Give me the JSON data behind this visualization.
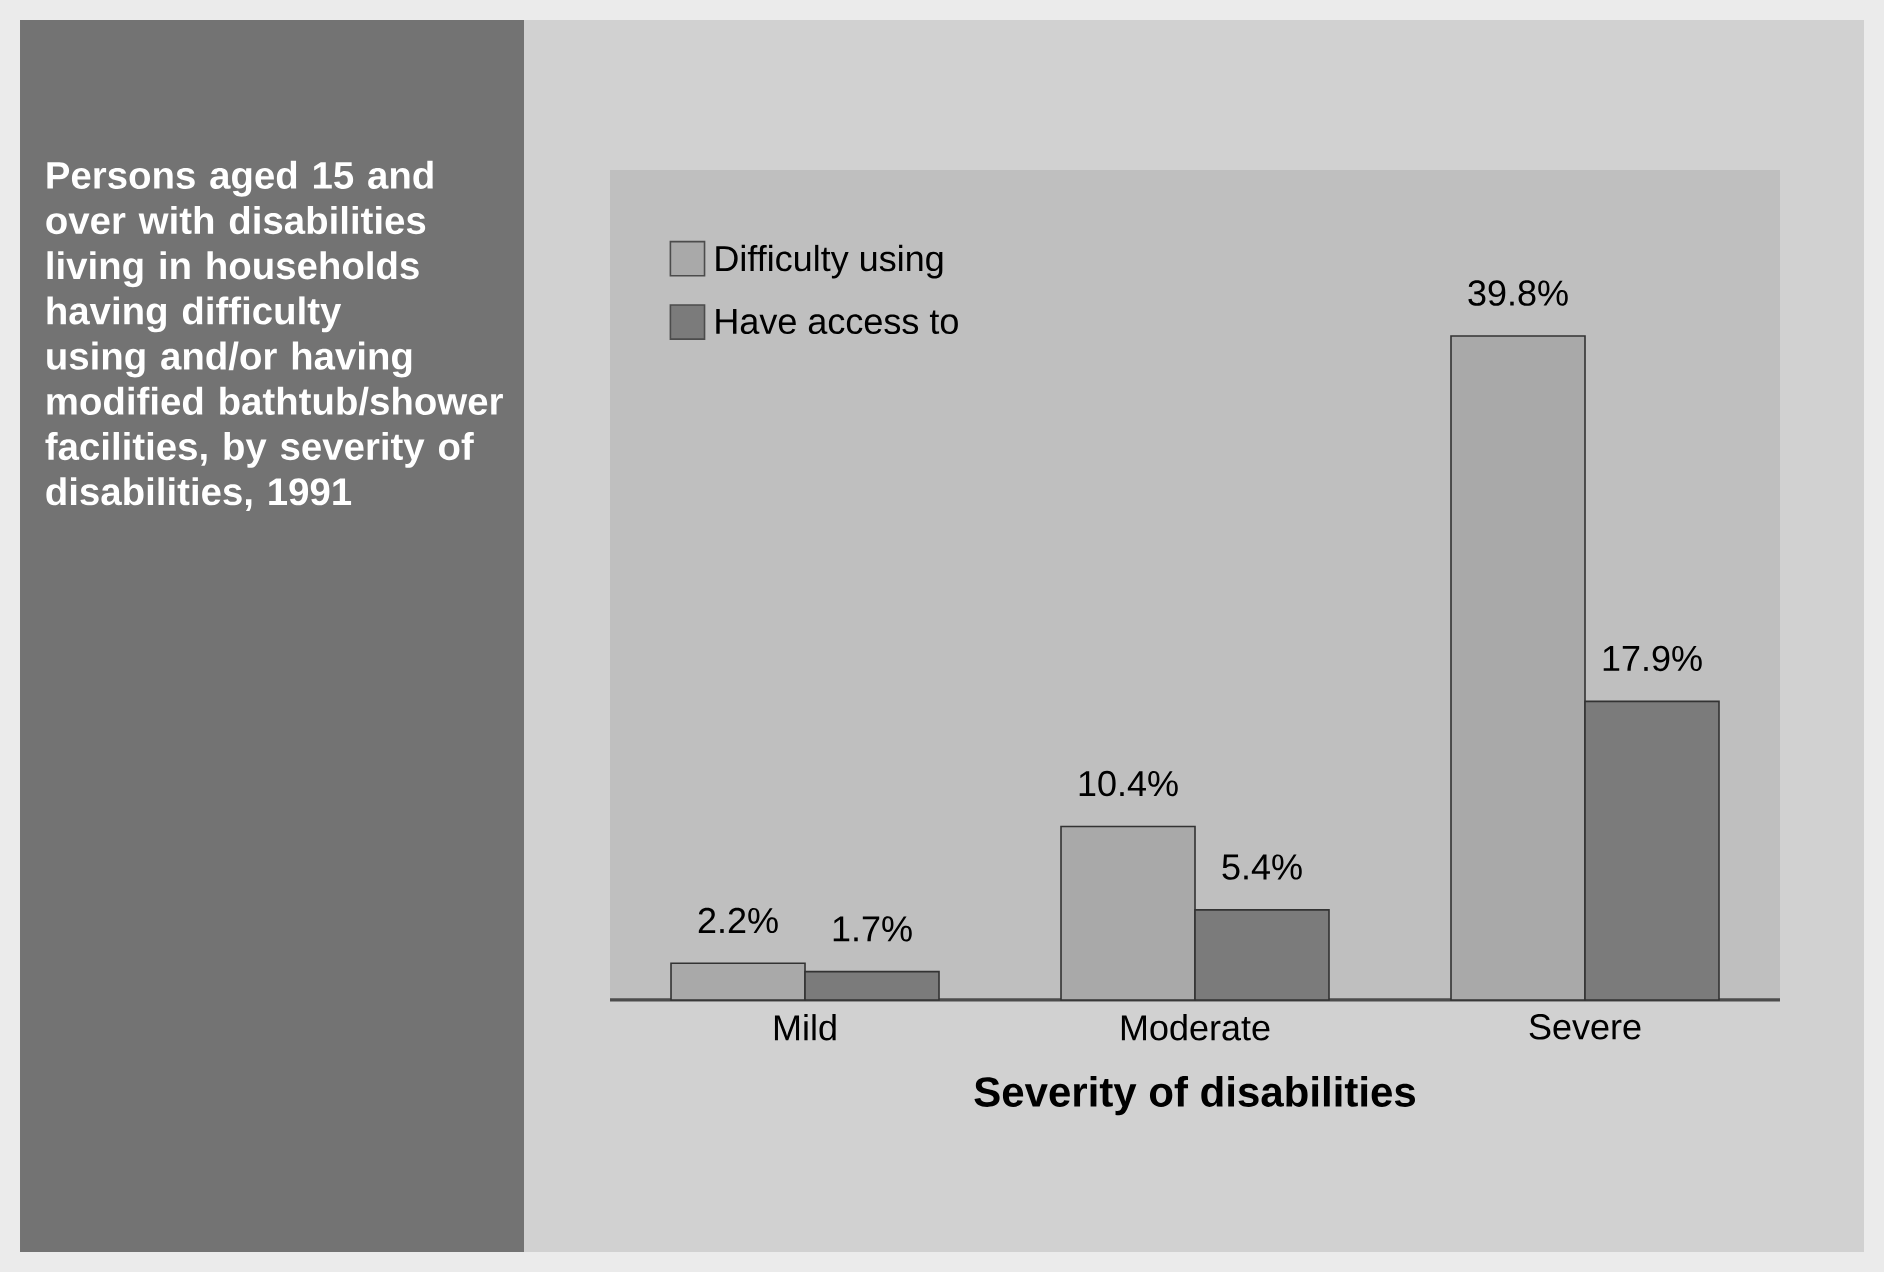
{
  "chart_data": {
    "type": "bar",
    "title": "Persons aged 15 and over with disabilities living in households having difficulty using and/or having modified bathtub/shower facilities, by severity of disabilities, 1991",
    "xlabel": "Severity of disabilities",
    "categories": [
      "Mild",
      "Moderate",
      "Severe"
    ],
    "series": [
      {
        "name": "Difficulty using",
        "color": "#a9a9a9",
        "values": [
          2.2,
          10.4,
          39.8
        ],
        "value_labels": [
          "2.2%",
          "10.4%",
          "39.8%"
        ]
      },
      {
        "name": "Have access to",
        "color": "#7b7b7b",
        "values": [
          1.7,
          5.4,
          17.9
        ],
        "value_labels": [
          "1.7%",
          "5.4%",
          "17.9%"
        ]
      }
    ],
    "tick_labels": "x",
    "legend": "top left"
  }
}
